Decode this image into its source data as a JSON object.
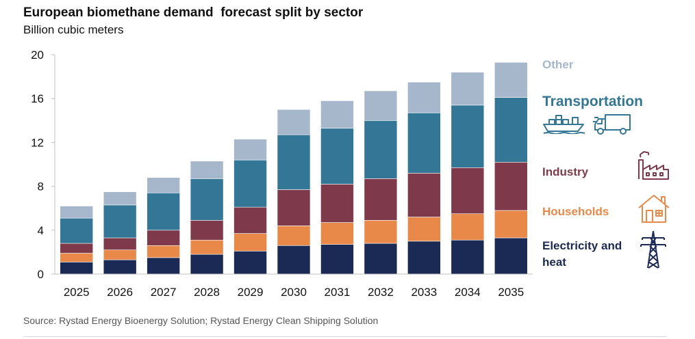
{
  "title": "European biomethane demand  forecast split by sector",
  "subtitle": "Billion cubic meters",
  "source": "Source: Rystad Energy Bioenergy Solution; Rystad Energy Clean Shipping Solution",
  "chart_data": {
    "type": "bar",
    "stacked": true,
    "categories": [
      "2025",
      "2026",
      "2027",
      "2028",
      "2029",
      "2030",
      "2031",
      "2032",
      "2033",
      "2034",
      "2035"
    ],
    "ylim": [
      0,
      20
    ],
    "yticks": [
      0,
      4,
      8,
      12,
      16,
      20
    ],
    "grid": false,
    "legend_placement": "right",
    "series": [
      {
        "name": "Electricity and heat",
        "color": "#1b2a55",
        "values": [
          1.1,
          1.3,
          1.5,
          1.8,
          2.1,
          2.6,
          2.7,
          2.8,
          3.0,
          3.1,
          3.3
        ]
      },
      {
        "name": "Households",
        "color": "#e8894a",
        "values": [
          0.8,
          0.9,
          1.1,
          1.3,
          1.6,
          1.8,
          2.0,
          2.1,
          2.2,
          2.4,
          2.5
        ]
      },
      {
        "name": "Industry",
        "color": "#7e3a4a",
        "values": [
          0.9,
          1.1,
          1.4,
          1.8,
          2.4,
          3.3,
          3.5,
          3.8,
          4.0,
          4.2,
          4.4
        ]
      },
      {
        "name": "Transportation",
        "color": "#337695",
        "values": [
          2.3,
          3.0,
          3.4,
          3.8,
          4.3,
          5.0,
          5.1,
          5.3,
          5.5,
          5.7,
          5.9
        ]
      },
      {
        "name": "Other",
        "color": "#a7b7cb",
        "values": [
          1.1,
          1.2,
          1.4,
          1.6,
          1.9,
          2.3,
          2.5,
          2.7,
          2.8,
          3.0,
          3.2
        ]
      }
    ]
  },
  "legend": {
    "other": {
      "label": "Other",
      "color": "#a7b7cb"
    },
    "transportation": {
      "label": "Transportation",
      "color": "#337695",
      "icons": [
        "ship-icon",
        "truck-icon"
      ]
    },
    "industry": {
      "label": "Industry",
      "color": "#7e3a4a",
      "icon": "factory-icon"
    },
    "households": {
      "label": "Households",
      "color": "#e8894a",
      "icon": "house-icon"
    },
    "electricity": {
      "label": "Electricity and\nheat",
      "color": "#1b2a55",
      "icon": "power-tower-icon"
    }
  }
}
